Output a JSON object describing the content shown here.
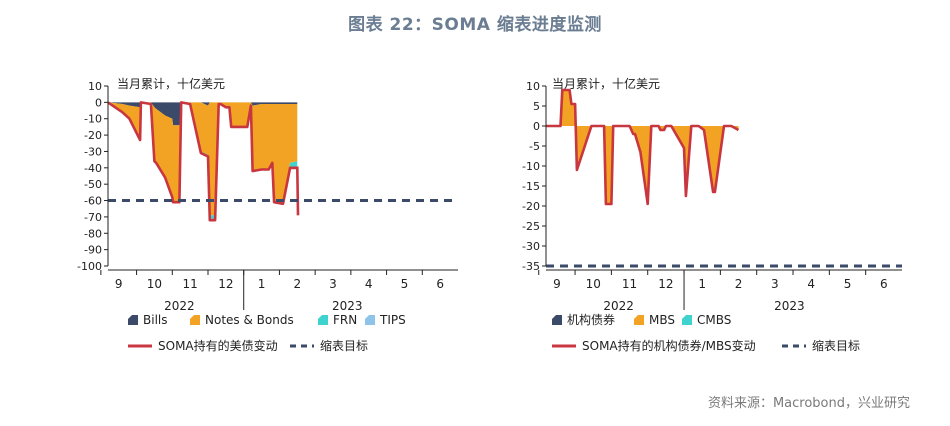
{
  "figure_title": "图表 22：SOMA 缩表进度监测",
  "source": "资料来源：Macrobond，兴业研究",
  "colors": {
    "title": "#6b7d92",
    "navy": "#3a4a68",
    "orange": "#f2a323",
    "teal": "#3fd3d0",
    "lightblue": "#8fc4ea",
    "red": "#c8363f",
    "target": "#3a4a68"
  },
  "chart_data": [
    {
      "type": "area",
      "stacked": true,
      "unit_label": "当月累计，十亿美元",
      "ylim": [
        -100,
        10
      ],
      "yticks": [
        10,
        0,
        -10,
        -20,
        -30,
        -40,
        -50,
        -60,
        -70,
        -80,
        -90,
        -100
      ],
      "xlim": [
        8.7,
        18.5
      ],
      "xticks": [
        9,
        10,
        11,
        12,
        13,
        14,
        15,
        16,
        17,
        18
      ],
      "xtick_labels": [
        "9",
        "10",
        "11",
        "12",
        "1",
        "2",
        "3",
        "4",
        "5",
        "6"
      ],
      "year_labels": [
        {
          "x": 10.7,
          "label": "2022"
        },
        {
          "x": 15.4,
          "label": "2023"
        }
      ],
      "target": -60,
      "target_label": "缩表目标",
      "line_name": "SOMA持有的美债变动",
      "series_order": [
        "Bills",
        "Notes & Bonds",
        "FRN",
        "TIPS"
      ],
      "series": [
        {
          "name": "Bills",
          "color": "#3a4a68",
          "x": [
            8.7,
            9.1,
            9.3,
            9.6,
            9.62,
            9.9,
            10.0,
            10.05,
            10.3,
            10.5,
            10.52,
            10.7,
            10.75,
            11.0,
            11.3,
            11.5,
            11.55,
            11.7,
            11.8,
            11.85,
            12.0,
            12.1,
            12.15,
            12.6,
            12.7,
            12.75,
            13.0,
            13.2,
            13.3,
            13.35,
            13.6,
            13.8,
            14.0
          ],
          "values": [
            0,
            -1,
            -2,
            -3,
            0,
            0,
            -3,
            -4,
            -8,
            -10,
            -14,
            -14,
            0,
            0,
            0,
            -2,
            0,
            0,
            0,
            0,
            0,
            0,
            0,
            0,
            0,
            -2,
            -1,
            -1,
            -1,
            -1,
            -1,
            -1,
            -1
          ]
        },
        {
          "name": "Notes & Bonds",
          "color": "#f2a323",
          "x": [
            8.7,
            9.1,
            9.3,
            9.6,
            9.62,
            9.9,
            10.0,
            10.05,
            10.3,
            10.5,
            10.52,
            10.7,
            10.75,
            11.0,
            11.3,
            11.5,
            11.55,
            11.7,
            11.8,
            11.85,
            12.0,
            12.1,
            12.15,
            12.6,
            12.7,
            12.75,
            13.0,
            13.2,
            13.3,
            13.35,
            13.6,
            13.8,
            14.0
          ],
          "values": [
            0,
            -5,
            -8,
            -20,
            0,
            -1,
            -33,
            -33,
            -38,
            -48,
            -47,
            -47,
            0,
            -1,
            -30,
            -30,
            -69,
            -69,
            -1,
            -1,
            -3,
            -3,
            -15,
            -15,
            -2,
            -40,
            -40,
            -40,
            -36,
            -60,
            -61,
            -36,
            -35
          ]
        },
        {
          "name": "FRN",
          "color": "#3fd3d0",
          "x": [
            8.7,
            9.1,
            9.3,
            9.6,
            9.62,
            9.9,
            10.0,
            10.05,
            10.3,
            10.5,
            10.52,
            10.7,
            10.75,
            11.0,
            11.3,
            11.5,
            11.55,
            11.7,
            11.8,
            11.85,
            12.0,
            12.1,
            12.15,
            12.6,
            12.7,
            12.75,
            13.0,
            13.2,
            13.3,
            13.35,
            13.6,
            13.8,
            14.0
          ],
          "values": [
            0,
            0,
            0,
            0,
            0,
            0,
            0,
            0,
            0,
            0,
            0,
            0,
            0,
            0,
            -1,
            -1,
            -2,
            -2,
            0,
            0,
            0,
            0,
            0,
            0,
            0,
            0,
            0,
            0,
            0,
            0,
            0,
            -3,
            -3
          ]
        },
        {
          "name": "TIPS",
          "color": "#8fc4ea",
          "x": [
            8.7,
            9.1,
            9.3,
            9.6,
            9.62,
            9.9,
            10.0,
            10.05,
            10.3,
            10.5,
            10.52,
            10.7,
            10.75,
            11.0,
            11.3,
            11.5,
            11.55,
            11.7,
            11.8,
            11.85,
            12.0,
            12.1,
            12.15,
            12.6,
            12.7,
            12.75,
            13.0,
            13.2,
            13.3,
            13.35,
            13.6,
            13.8,
            14.0
          ],
          "values": [
            0,
            0,
            0,
            0,
            0,
            0,
            0,
            0,
            0,
            0,
            0,
            0,
            0,
            0,
            0,
            0,
            -1,
            -1,
            0,
            0,
            0,
            0,
            0,
            0,
            0,
            0,
            0,
            0,
            0,
            0,
            0,
            -1,
            -1
          ]
        }
      ],
      "line": {
        "name": "SOMA持有的美债变动",
        "color": "#c8363f",
        "x": [
          8.7,
          9.1,
          9.3,
          9.6,
          9.62,
          9.9,
          10.0,
          10.05,
          10.3,
          10.5,
          10.52,
          10.7,
          10.75,
          11.0,
          11.3,
          11.5,
          11.55,
          11.7,
          11.8,
          11.85,
          12.0,
          12.1,
          12.15,
          12.6,
          12.7,
          12.75,
          13.0,
          13.2,
          13.3,
          13.35,
          13.6,
          13.8,
          14.0
        ],
        "values": [
          0,
          -6,
          -10,
          -23,
          0,
          -1,
          -36,
          -37,
          -46,
          -58,
          -61,
          -61,
          0,
          -1,
          -31,
          -33,
          -72,
          -72,
          -1,
          -1,
          -3,
          -3,
          -15,
          -15,
          -2,
          -42,
          -41,
          -41,
          -37,
          -61,
          -62,
          -40,
          -40
        ]
      },
      "line_tail": {
        "x": [
          13.8,
          14.0,
          14.02
        ],
        "values": [
          -40,
          -40,
          -69
        ]
      },
      "legend": [
        {
          "label": "Bills",
          "color": "#3a4a68",
          "kind": "box"
        },
        {
          "label": "Notes & Bonds",
          "color": "#f2a323",
          "kind": "box"
        },
        {
          "label": "FRN",
          "color": "#3fd3d0",
          "kind": "box"
        },
        {
          "label": "TIPS",
          "color": "#8fc4ea",
          "kind": "box"
        },
        {
          "label": "SOMA持有的美债变动",
          "color": "#c8363f",
          "kind": "line"
        },
        {
          "label": "缩表目标",
          "color": "#3a4a68",
          "kind": "dash"
        }
      ]
    },
    {
      "type": "area",
      "stacked": true,
      "unit_label": "当月累计，十亿美元",
      "ylim": [
        -35,
        10
      ],
      "yticks": [
        10,
        5,
        0,
        -5,
        -10,
        -15,
        -20,
        -25,
        -30,
        -35
      ],
      "xlim": [
        8.7,
        18.5
      ],
      "xticks": [
        9,
        10,
        11,
        12,
        13,
        14,
        15,
        16,
        17,
        18
      ],
      "xtick_labels": [
        "9",
        "10",
        "11",
        "12",
        "1",
        "2",
        "3",
        "4",
        "5",
        "6"
      ],
      "year_labels": [
        {
          "x": 10.7,
          "label": "2022"
        },
        {
          "x": 15.4,
          "label": "2023"
        }
      ],
      "target": -35,
      "target_label": "缩表目标",
      "line_name": "SOMA持有的机构债券/MBS变动",
      "series_order": [
        "机构债券",
        "MBS",
        "CMBS"
      ],
      "series": [
        {
          "name": "机构债券",
          "color": "#3a4a68",
          "x": [
            8.7,
            9.1,
            9.15,
            9.35,
            9.4,
            9.5,
            9.55,
            9.95,
            10.3,
            10.35,
            10.5,
            10.55,
            11.0,
            11.1,
            11.15,
            11.3,
            11.5,
            11.6,
            11.8,
            11.85,
            11.95,
            12.0,
            12.15,
            12.5,
            12.55,
            12.7,
            12.75,
            12.9,
            13.05,
            13.3,
            13.35,
            13.6,
            13.8,
            14.0
          ],
          "values": [
            0,
            0,
            0,
            0,
            0,
            0,
            0,
            0,
            0,
            0,
            0,
            0,
            0,
            0,
            0,
            0,
            0,
            0,
            0,
            0,
            0,
            0,
            0,
            0,
            0,
            0,
            0,
            0,
            0,
            0,
            0,
            0,
            0,
            0
          ]
        },
        {
          "name": "MBS",
          "color": "#f2a323",
          "x": [
            8.7,
            9.1,
            9.15,
            9.35,
            9.4,
            9.5,
            9.55,
            9.95,
            10.3,
            10.35,
            10.5,
            10.55,
            11.0,
            11.1,
            11.15,
            11.3,
            11.5,
            11.6,
            11.8,
            11.85,
            11.95,
            12.0,
            12.15,
            12.5,
            12.55,
            12.7,
            12.75,
            12.9,
            13.05,
            13.3,
            13.35,
            13.6,
            13.8,
            14.0
          ],
          "values": [
            0,
            0,
            9,
            9,
            5.5,
            5.5,
            -11,
            0,
            0,
            -19.5,
            -19.5,
            0,
            0,
            -2,
            -2,
            -6.5,
            -19.5,
            0,
            0,
            -1,
            -1,
            0,
            0,
            -5.5,
            -17.5,
            0,
            0,
            0,
            -1,
            -16.5,
            -16.5,
            0,
            0,
            -1
          ]
        },
        {
          "name": "CMBS",
          "color": "#3fd3d0",
          "x": [
            8.7,
            9.1,
            9.15,
            9.35,
            9.4,
            9.5,
            9.55,
            9.95,
            10.3,
            10.35,
            10.5,
            10.55,
            11.0,
            11.1,
            11.15,
            11.3,
            11.5,
            11.6,
            11.8,
            11.85,
            11.95,
            12.0,
            12.15,
            12.5,
            12.55,
            12.7,
            12.75,
            12.9,
            13.05,
            13.3,
            13.35,
            13.6,
            13.8,
            14.0
          ],
          "values": [
            0,
            0,
            0,
            0,
            0,
            0,
            0,
            0,
            0,
            0,
            0,
            0,
            0,
            0,
            0,
            0,
            0,
            0,
            0,
            0,
            0,
            0,
            0,
            0,
            0,
            0,
            0,
            0,
            0,
            0,
            0,
            0,
            0,
            0
          ]
        }
      ],
      "line": {
        "name": "SOMA持有的机构债券/MBS变动",
        "color": "#c8363f",
        "x": [
          8.7,
          9.1,
          9.15,
          9.35,
          9.4,
          9.5,
          9.55,
          9.95,
          10.3,
          10.35,
          10.5,
          10.55,
          11.0,
          11.1,
          11.15,
          11.3,
          11.5,
          11.6,
          11.8,
          11.85,
          11.95,
          12.0,
          12.15,
          12.5,
          12.55,
          12.7,
          12.75,
          12.9,
          13.05,
          13.3,
          13.35,
          13.6,
          13.8,
          14.0
        ],
        "values": [
          0,
          0,
          9,
          9,
          5.5,
          5.5,
          -11,
          0,
          0,
          -19.5,
          -19.5,
          0,
          0,
          -2,
          -2,
          -6.5,
          -19.5,
          0,
          0,
          -1,
          -1,
          0,
          0,
          -5.5,
          -17.5,
          0,
          0,
          0,
          -1,
          -16.5,
          -16.5,
          0,
          0,
          -1
        ]
      },
      "legend": [
        {
          "label": "机构债券",
          "color": "#3a4a68",
          "kind": "box"
        },
        {
          "label": "MBS",
          "color": "#f2a323",
          "kind": "box"
        },
        {
          "label": "CMBS",
          "color": "#3fd3d0",
          "kind": "box"
        },
        {
          "label": "SOMA持有的机构债券/MBS变动",
          "color": "#c8363f",
          "kind": "line"
        },
        {
          "label": "缩表目标",
          "color": "#3a4a68",
          "kind": "dash"
        }
      ]
    }
  ]
}
